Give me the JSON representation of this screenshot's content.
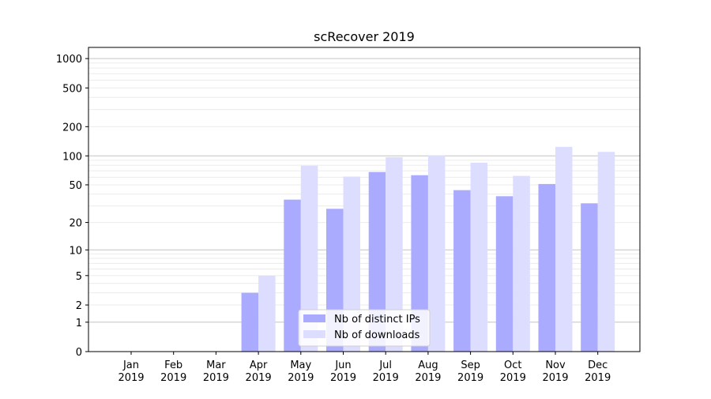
{
  "chart_data": {
    "type": "bar",
    "title": "scRecover 2019",
    "xlabel": "",
    "ylabel": "",
    "yscale": "log(1+y)",
    "ylim": [
      0,
      1200
    ],
    "yticks": [
      0,
      1,
      2,
      5,
      10,
      20,
      50,
      100,
      200,
      500,
      1000
    ],
    "grid": true,
    "legend_position": "lower-center",
    "categories": [
      "Jan\n2019",
      "Feb\n2019",
      "Mar\n2019",
      "Apr\n2019",
      "May\n2019",
      "Jun\n2019",
      "Jul\n2019",
      "Aug\n2019",
      "Sep\n2019",
      "Oct\n2019",
      "Nov\n2019",
      "Dec\n2019"
    ],
    "series": [
      {
        "name": "Nb of distinct IPs",
        "color": "#aaaaff",
        "values": [
          0,
          0,
          0,
          3,
          35,
          28,
          68,
          63,
          44,
          38,
          51,
          32
        ]
      },
      {
        "name": "Nb of downloads",
        "color": "#ddddff",
        "values": [
          0,
          0,
          0,
          5,
          79,
          61,
          97,
          101,
          85,
          62,
          124,
          110
        ]
      }
    ]
  }
}
